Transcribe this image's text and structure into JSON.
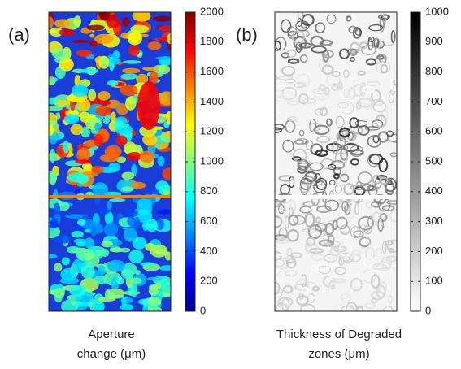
{
  "panels": [
    {
      "label": "(a)",
      "caption": [
        "Aperture",
        "change (μm)"
      ],
      "colorbar": {
        "lim": [
          0,
          2000
        ],
        "ticks": [
          0,
          200,
          400,
          600,
          800,
          1000,
          1200,
          1400,
          1600,
          1800,
          2000
        ]
      }
    },
    {
      "label": "(b)",
      "caption": [
        "Thickness of Degraded",
        "zones (μm)"
      ],
      "colorbar": {
        "lim": [
          0,
          1000
        ],
        "ticks": [
          0,
          100,
          200,
          300,
          400,
          500,
          600,
          700,
          800,
          900,
          1000
        ]
      }
    }
  ]
}
